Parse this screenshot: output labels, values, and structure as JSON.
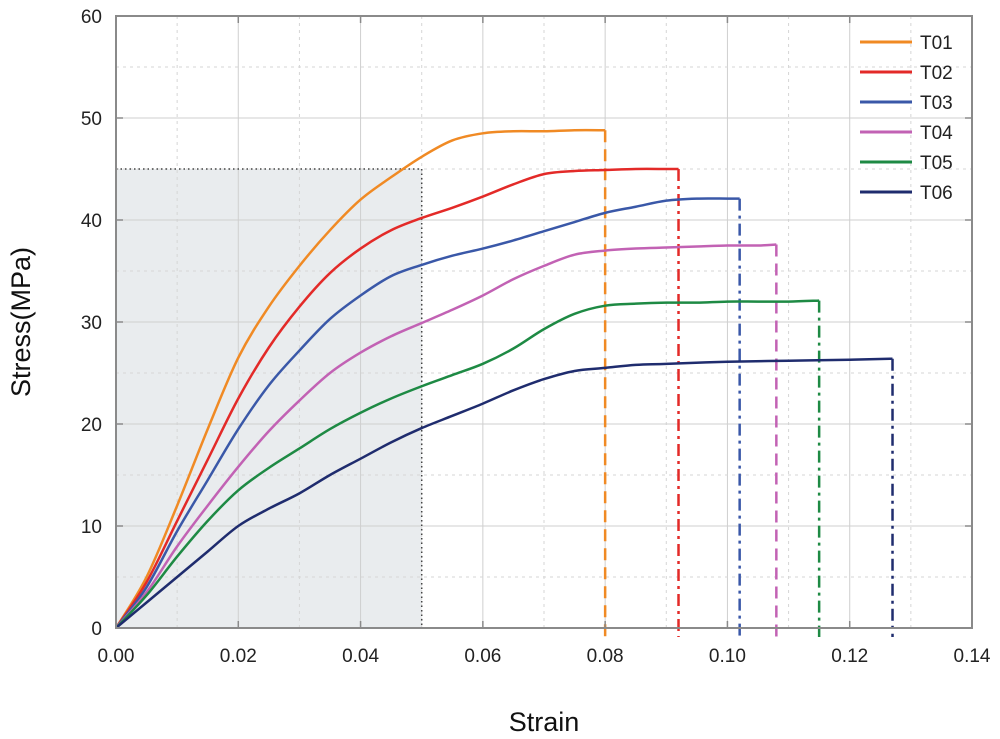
{
  "chart_data": {
    "type": "line",
    "title": "",
    "xlabel": "Strain",
    "ylabel": "Stress(MPa)",
    "xlim": [
      0,
      0.14
    ],
    "ylim": [
      0,
      60
    ],
    "x_ticks": [
      "0.00",
      "0.02",
      "0.04",
      "0.06",
      "0.08",
      "0.10",
      "0.12",
      "0.14"
    ],
    "y_ticks": [
      "0",
      "10",
      "20",
      "30",
      "40",
      "50",
      "60"
    ],
    "grid": true,
    "legend_position": "top-right",
    "shaded_region": {
      "x": [
        0,
        0.05
      ],
      "y": [
        0,
        45
      ],
      "color": "#e9ecee"
    },
    "series": [
      {
        "name": "T01",
        "color": "#f08a24",
        "x": [
          0,
          0.005,
          0.01,
          0.015,
          0.02,
          0.025,
          0.03,
          0.035,
          0.04,
          0.045,
          0.05,
          0.055,
          0.06,
          0.065,
          0.07,
          0.075,
          0.08
        ],
        "y": [
          0,
          5,
          12,
          19.5,
          26.5,
          31.5,
          35.5,
          39,
          42,
          44.2,
          46.2,
          47.8,
          48.5,
          48.7,
          48.7,
          48.8,
          48.8
        ],
        "fracture_strain": 0.08,
        "fracture_style": "dashed"
      },
      {
        "name": "T02",
        "color": "#e32a28",
        "x": [
          0,
          0.005,
          0.01,
          0.015,
          0.02,
          0.025,
          0.03,
          0.035,
          0.04,
          0.045,
          0.05,
          0.055,
          0.06,
          0.065,
          0.07,
          0.075,
          0.08,
          0.085,
          0.09,
          0.092
        ],
        "y": [
          0,
          4.5,
          10.5,
          16.5,
          22.5,
          27.5,
          31.5,
          34.8,
          37.2,
          39,
          40.2,
          41.2,
          42.3,
          43.5,
          44.5,
          44.8,
          44.9,
          45,
          45,
          45
        ],
        "fracture_strain": 0.092,
        "fracture_style": "dashdot"
      },
      {
        "name": "T03",
        "color": "#3a58a8",
        "x": [
          0,
          0.005,
          0.01,
          0.015,
          0.02,
          0.025,
          0.03,
          0.035,
          0.04,
          0.045,
          0.05,
          0.055,
          0.06,
          0.065,
          0.07,
          0.075,
          0.08,
          0.085,
          0.09,
          0.095,
          0.1,
          0.102
        ],
        "y": [
          0,
          4,
          9.5,
          14.5,
          19.5,
          23.8,
          27.2,
          30.3,
          32.6,
          34.5,
          35.6,
          36.5,
          37.2,
          38,
          38.9,
          39.8,
          40.7,
          41.3,
          41.9,
          42.1,
          42.1,
          42.1
        ],
        "fracture_strain": 0.102,
        "fracture_style": "dashdot"
      },
      {
        "name": "T04",
        "color": "#c262b4",
        "x": [
          0,
          0.005,
          0.01,
          0.015,
          0.02,
          0.025,
          0.03,
          0.035,
          0.04,
          0.045,
          0.05,
          0.055,
          0.06,
          0.065,
          0.07,
          0.075,
          0.08,
          0.085,
          0.09,
          0.095,
          0.1,
          0.105,
          0.108
        ],
        "y": [
          0,
          3.5,
          8,
          12,
          15.8,
          19.3,
          22.3,
          25,
          27,
          28.6,
          29.9,
          31.2,
          32.6,
          34.2,
          35.5,
          36.6,
          37,
          37.2,
          37.3,
          37.4,
          37.5,
          37.5,
          37.6
        ],
        "fracture_strain": 0.108,
        "fracture_style": "dashed"
      },
      {
        "name": "T05",
        "color": "#1e8a44",
        "x": [
          0,
          0.005,
          0.01,
          0.015,
          0.02,
          0.025,
          0.03,
          0.035,
          0.04,
          0.045,
          0.05,
          0.055,
          0.06,
          0.065,
          0.07,
          0.075,
          0.08,
          0.085,
          0.09,
          0.095,
          0.1,
          0.105,
          0.11,
          0.115
        ],
        "y": [
          0,
          3.2,
          7,
          10.5,
          13.5,
          15.7,
          17.6,
          19.5,
          21.1,
          22.5,
          23.7,
          24.8,
          25.9,
          27.4,
          29.3,
          30.8,
          31.6,
          31.8,
          31.9,
          31.9,
          32,
          32,
          32,
          32.1
        ],
        "fracture_strain": 0.115,
        "fracture_style": "dashdot"
      },
      {
        "name": "T06",
        "color": "#1f2c6e",
        "x": [
          0,
          0.005,
          0.01,
          0.015,
          0.02,
          0.025,
          0.03,
          0.035,
          0.04,
          0.045,
          0.05,
          0.055,
          0.06,
          0.065,
          0.07,
          0.075,
          0.08,
          0.085,
          0.09,
          0.1,
          0.11,
          0.12,
          0.127
        ],
        "y": [
          0,
          2.5,
          5,
          7.5,
          10,
          11.7,
          13.2,
          15,
          16.6,
          18.2,
          19.6,
          20.8,
          22,
          23.3,
          24.4,
          25.2,
          25.5,
          25.8,
          25.9,
          26.1,
          26.2,
          26.3,
          26.4
        ],
        "fracture_strain": 0.127,
        "fracture_style": "dashdot"
      }
    ]
  }
}
